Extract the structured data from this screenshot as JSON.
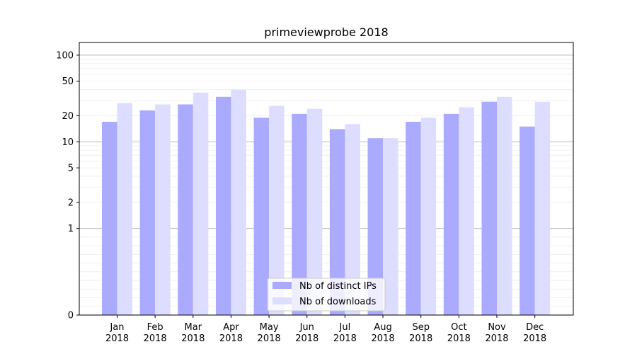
{
  "chart_data": {
    "type": "bar",
    "title": "primeviewprobe 2018",
    "xlabel": "",
    "ylabel": "",
    "scale": "symlog",
    "ylim": [
      0,
      140
    ],
    "yticks": [
      0,
      1,
      2,
      5,
      10,
      20,
      50,
      100
    ],
    "ytick_labels": [
      "0",
      "1",
      "2",
      "5",
      "10",
      "20",
      "50",
      "100"
    ],
    "categories": [
      [
        "Jan",
        "2018"
      ],
      [
        "Feb",
        "2018"
      ],
      [
        "Mar",
        "2018"
      ],
      [
        "Apr",
        "2018"
      ],
      [
        "May",
        "2018"
      ],
      [
        "Jun",
        "2018"
      ],
      [
        "Jul",
        "2018"
      ],
      [
        "Aug",
        "2018"
      ],
      [
        "Sep",
        "2018"
      ],
      [
        "Oct",
        "2018"
      ],
      [
        "Nov",
        "2018"
      ],
      [
        "Dec",
        "2018"
      ]
    ],
    "series": [
      {
        "name": "Nb of distinct IPs",
        "color": "#aaaaff",
        "values": [
          17,
          23,
          27,
          33,
          19,
          21,
          14,
          11,
          17,
          21,
          29,
          15
        ]
      },
      {
        "name": "Nb of downloads",
        "color": "#ddddff",
        "values": [
          28,
          27,
          37,
          40,
          26,
          24,
          16,
          11,
          19,
          25,
          33,
          29
        ]
      }
    ],
    "grid": true,
    "legend_position": "lower center"
  }
}
